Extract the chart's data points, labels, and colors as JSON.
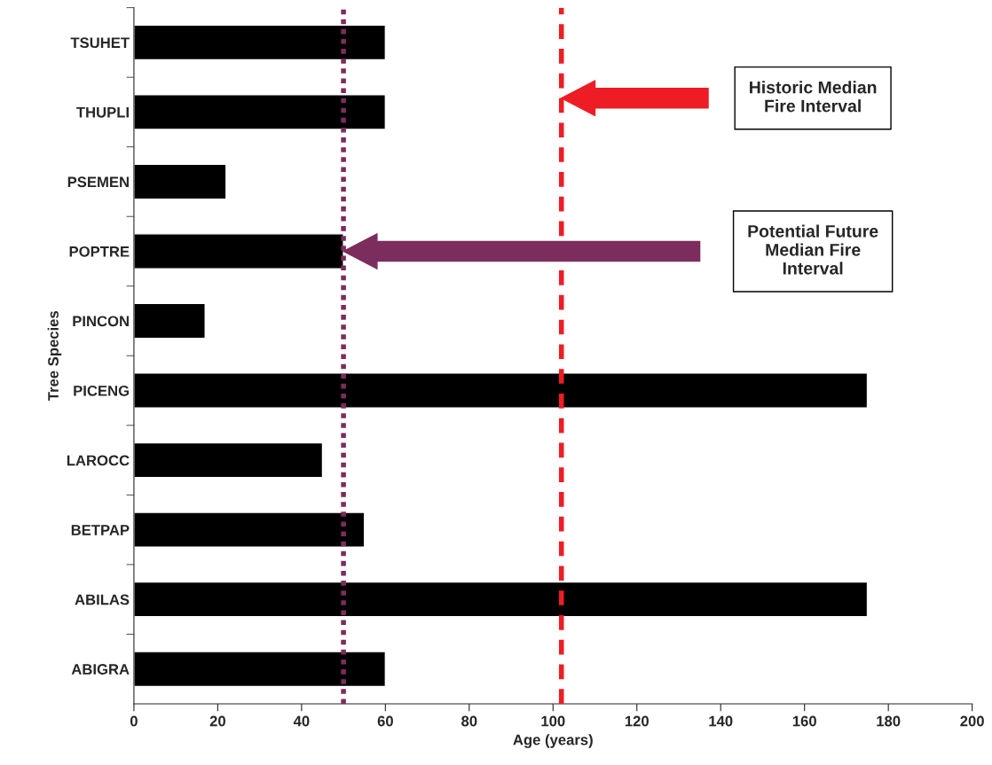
{
  "chart_data": {
    "type": "bar",
    "orientation": "horizontal",
    "xlabel": "Age (years)",
    "ylabel": "Tree Species",
    "categories": [
      "TSUHET",
      "THUPLI",
      "PSEMEN",
      "POPTRE",
      "PINCON",
      "PICENG",
      "LAROCC",
      "BETPAP",
      "ABILAS",
      "ABIGRA"
    ],
    "values": [
      60,
      60,
      22,
      50,
      17,
      175,
      45,
      55,
      175,
      60
    ],
    "color": "#000000",
    "xlim": [
      0,
      200
    ],
    "xticks": [
      0,
      20,
      40,
      60,
      80,
      100,
      120,
      140,
      160,
      180,
      200
    ],
    "grid": false,
    "ref_lines": [
      {
        "axis": "x",
        "value": 50,
        "color": "#7b2d5e",
        "line_style": "dotted"
      },
      {
        "axis": "x",
        "value": 102,
        "color": "#ee1c25",
        "line_style": "dashed"
      }
    ],
    "annotations": [
      "Historic Median Fire Interval",
      "Potential Future Median Fire Interval"
    ]
  }
}
